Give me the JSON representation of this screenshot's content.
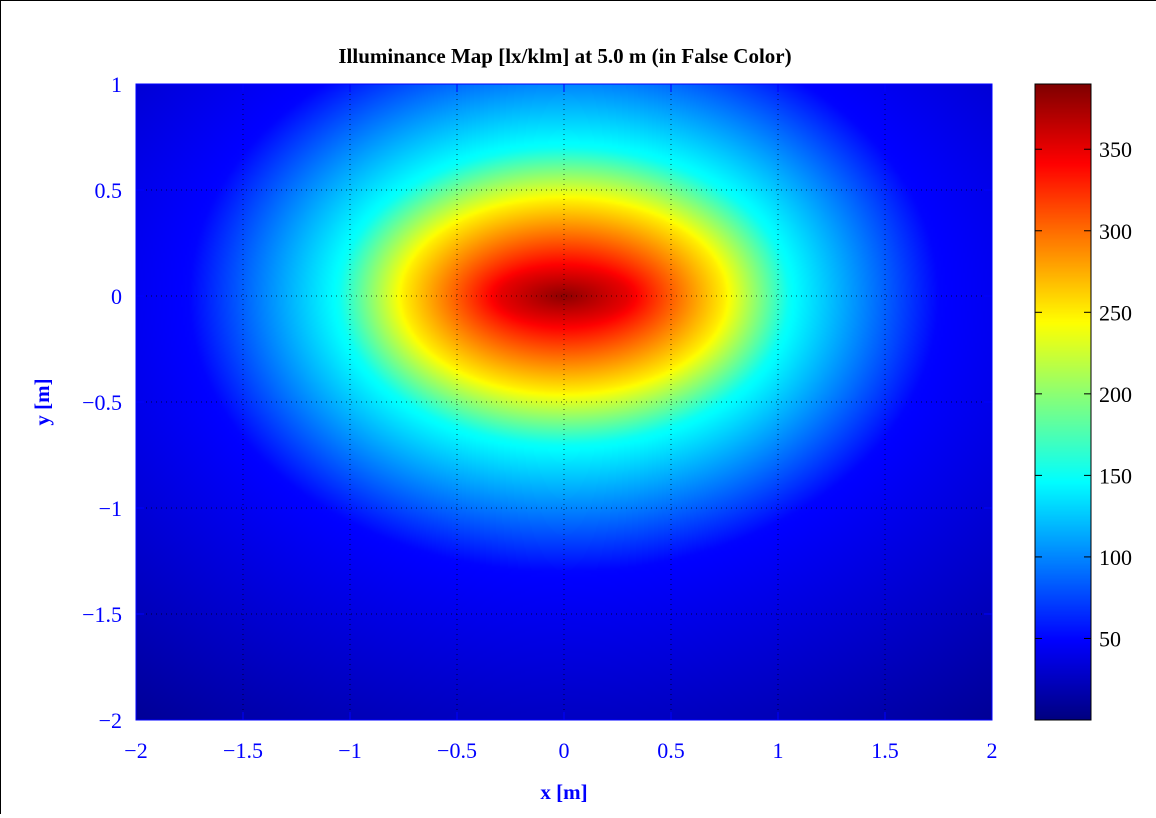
{
  "chart_data": {
    "type": "heatmap",
    "title": "Illuminance Map [lx/klm] at 5.0 m (in False Color)",
    "xlabel": "x [m]",
    "ylabel": "y [m]",
    "xlim": [
      -2,
      2
    ],
    "ylim": [
      -2,
      1
    ],
    "x_ticks": [
      "−2",
      "−1.5",
      "−1",
      "−0.5",
      "0",
      "0.5",
      "1",
      "1.5",
      "2"
    ],
    "x_tick_values": [
      -2,
      -1.5,
      -1,
      -0.5,
      0,
      0.5,
      1,
      1.5,
      2
    ],
    "y_ticks": [
      "1",
      "0.5",
      "0",
      "−0.5",
      "−1",
      "−1.5",
      "−2"
    ],
    "y_tick_values": [
      1,
      0.5,
      0,
      -0.5,
      -1,
      -1.5,
      -2
    ],
    "grid": "dotted",
    "colormap": "jet",
    "colorbar": {
      "range": [
        0,
        390
      ],
      "ticks": [
        "50",
        "100",
        "150",
        "200",
        "250",
        "300",
        "350"
      ],
      "tick_values": [
        50,
        100,
        150,
        200,
        250,
        300,
        350
      ]
    },
    "peak": {
      "x": 0,
      "y": 0,
      "value": 385
    },
    "field": {
      "model": "radial falloff from peak, wider in x than y",
      "center": [
        0,
        0
      ],
      "approx_levels": [
        {
          "value": 350,
          "half_width_x": 0.3,
          "half_width_y": 0.12
        },
        {
          "value": 250,
          "half_width_x": 0.75,
          "half_width_y": 0.45
        },
        {
          "value": 150,
          "half_width_x": 1.05,
          "half_width_y": 0.7
        },
        {
          "value": 50,
          "half_width_x": 1.75,
          "half_width_y": 1.3
        }
      ],
      "min_value": 5
    },
    "colors": {
      "axis_text": "#0000ff",
      "title_text": "#000000"
    }
  }
}
